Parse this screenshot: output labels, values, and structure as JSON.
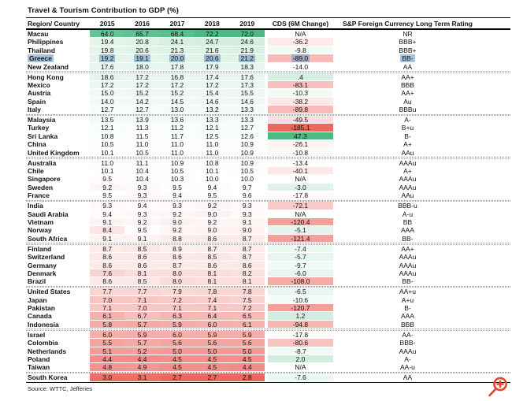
{
  "title": "Travel & Tourism Contribution to GDP (%)",
  "source": "Source: WTTC, Jefferies",
  "colors": {
    "heat_green": "#4dba82",
    "heat_red": "#ec675e",
    "highlight_blue": "#6e9bc4",
    "zoom_icon_orange": "#e8462a"
  },
  "heatmap": {
    "gdp": {
      "min": 2.7,
      "mid": 9.6,
      "max": 72.2
    },
    "cds": {
      "min": -185.1,
      "mid": -14.0,
      "max": 47.3
    }
  },
  "chart_data": {
    "type": "table",
    "columns": [
      "Region/ Country",
      "2015",
      "2016",
      "2017",
      "2018",
      "2019",
      "CDS (6M Change)",
      "S&P Foreign Currency Long Term Rating"
    ],
    "group_breaks": [
      4,
      9,
      14,
      19,
      24,
      29,
      34,
      39
    ],
    "highlighted_country": "Greece",
    "rows": [
      {
        "country": "Macau",
        "values": [
          64.0,
          65.7,
          68.4,
          72.2,
          72.0
        ],
        "cds": "N/A",
        "rating": "NR"
      },
      {
        "country": "Philippines",
        "values": [
          19.4,
          20.8,
          24.1,
          24.7,
          24.6
        ],
        "cds": "-36.2",
        "rating": "BBB+"
      },
      {
        "country": "Thailand",
        "values": [
          19.8,
          20.6,
          21.3,
          21.6,
          21.9
        ],
        "cds": "-9.8",
        "rating": "BBB+"
      },
      {
        "country": "Greece",
        "values": [
          19.2,
          19.1,
          20.0,
          20.6,
          21.2
        ],
        "cds": "-89.0",
        "rating": "BB-",
        "highlight": true
      },
      {
        "country": "New Zealand",
        "values": [
          17.6,
          18.0,
          17.8,
          17.9,
          18.3
        ],
        "cds": "-14.0",
        "rating": "AA"
      },
      {
        "country": "Hong Kong",
        "values": [
          18.6,
          17.2,
          16.8,
          17.4,
          17.6
        ],
        "cds": ".4",
        "rating": "AA+"
      },
      {
        "country": "Mexico",
        "values": [
          17.2,
          17.2,
          17.2,
          17.2,
          17.3
        ],
        "cds": "-83.1",
        "rating": "BBB"
      },
      {
        "country": "Austria",
        "values": [
          15.0,
          15.2,
          15.2,
          15.4,
          15.5
        ],
        "cds": "-10.3",
        "rating": "AA+"
      },
      {
        "country": "Spain",
        "values": [
          14.0,
          14.2,
          14.5,
          14.6,
          14.6
        ],
        "cds": "-38.2",
        "rating": "Au"
      },
      {
        "country": "Italy",
        "values": [
          12.7,
          12.7,
          13.0,
          13.2,
          13.3
        ],
        "cds": "-89.8",
        "rating": "BBBu"
      },
      {
        "country": "Malaysia",
        "values": [
          13.5,
          13.9,
          13.6,
          13.3,
          13.3
        ],
        "cds": "-49.5",
        "rating": "A-"
      },
      {
        "country": "Turkey",
        "values": [
          12.1,
          11.3,
          11.2,
          12.1,
          12.7
        ],
        "cds": "-185.1",
        "rating": "B+u"
      },
      {
        "country": "Sri Lanka",
        "values": [
          10.8,
          11.5,
          11.7,
          12.5,
          12.6
        ],
        "cds": "47.3",
        "rating": "B-"
      },
      {
        "country": "China",
        "values": [
          10.5,
          11.0,
          11.0,
          11.0,
          10.9
        ],
        "cds": "-26.1",
        "rating": "A+"
      },
      {
        "country": "United Kingdom",
        "values": [
          10.1,
          10.5,
          11.0,
          11.0,
          10.9
        ],
        "cds": "-10.8",
        "rating": "AAu"
      },
      {
        "country": "Australia",
        "values": [
          11.0,
          11.1,
          10.9,
          10.8,
          10.9
        ],
        "cds": "-13.4",
        "rating": "AAAu"
      },
      {
        "country": "Chile",
        "values": [
          10.1,
          10.4,
          10.5,
          10.1,
          10.5
        ],
        "cds": "-40.1",
        "rating": "A+"
      },
      {
        "country": "Singapore",
        "values": [
          9.5,
          10.4,
          10.3,
          10.0,
          10.0
        ],
        "cds": "N/A",
        "rating": "AAAu"
      },
      {
        "country": "Sweden",
        "values": [
          9.2,
          9.3,
          9.5,
          9.4,
          9.7
        ],
        "cds": "-3.0",
        "rating": "AAAu"
      },
      {
        "country": "France",
        "values": [
          9.5,
          9.3,
          9.4,
          9.5,
          9.6
        ],
        "cds": "-17.8",
        "rating": "AAu"
      },
      {
        "country": "India",
        "values": [
          9.3,
          9.4,
          9.3,
          9.2,
          9.3
        ],
        "cds": "-72.1",
        "rating": "BBB-u"
      },
      {
        "country": "Saudi Arabia",
        "values": [
          9.4,
          9.3,
          9.2,
          9.0,
          9.3
        ],
        "cds": "N/A",
        "rating": "A-u"
      },
      {
        "country": "Vietnam",
        "values": [
          9.1,
          9.2,
          9.0,
          9.2,
          9.1
        ],
        "cds": "-120.4",
        "rating": "BB"
      },
      {
        "country": "Norway",
        "values": [
          8.4,
          9.5,
          9.2,
          9.0,
          9.0
        ],
        "cds": "-5.1",
        "rating": "AAA"
      },
      {
        "country": "South Africa",
        "values": [
          9.1,
          9.1,
          8.8,
          8.6,
          8.7
        ],
        "cds": "-121.4",
        "rating": "BB-"
      },
      {
        "country": "Finland",
        "values": [
          8.7,
          8.5,
          8.9,
          8.7,
          8.7
        ],
        "cds": "-7.4",
        "rating": "AA+"
      },
      {
        "country": "Switzerland",
        "values": [
          8.6,
          8.6,
          8.6,
          8.5,
          8.7
        ],
        "cds": "-5.7",
        "rating": "AAAu"
      },
      {
        "country": "Germany",
        "values": [
          8.6,
          8.6,
          8.7,
          8.6,
          8.6
        ],
        "cds": "-9.7",
        "rating": "AAAu"
      },
      {
        "country": "Denmark",
        "values": [
          7.6,
          8.1,
          8.0,
          8.1,
          8.2
        ],
        "cds": "-6.0",
        "rating": "AAAu"
      },
      {
        "country": "Brazil",
        "values": [
          8.6,
          8.5,
          8.0,
          8.1,
          8.1
        ],
        "cds": "-108.0",
        "rating": "BB-"
      },
      {
        "country": "United States",
        "values": [
          7.7,
          7.7,
          7.9,
          7.8,
          7.8
        ],
        "cds": "-6.5",
        "rating": "AA+u"
      },
      {
        "country": "Japan",
        "values": [
          7.0,
          7.1,
          7.2,
          7.4,
          7.5
        ],
        "cds": "-10.6",
        "rating": "A+u"
      },
      {
        "country": "Pakistan",
        "values": [
          7.1,
          7.0,
          7.1,
          7.1,
          7.2
        ],
        "cds": "-120.7",
        "rating": "B-"
      },
      {
        "country": "Canada",
        "values": [
          6.1,
          6.7,
          6.3,
          6.4,
          6.5
        ],
        "cds": "1.2",
        "rating": "AAA"
      },
      {
        "country": "Indonesia",
        "values": [
          5.8,
          5.7,
          5.9,
          6.0,
          6.1
        ],
        "cds": "-94.8",
        "rating": "BBB"
      },
      {
        "country": "Israel",
        "values": [
          6.0,
          5.9,
          6.0,
          5.9,
          5.9
        ],
        "cds": "-17.8",
        "rating": "AA-"
      },
      {
        "country": "Colombia",
        "values": [
          5.5,
          5.7,
          5.6,
          5.6,
          5.6
        ],
        "cds": "-80.6",
        "rating": "BBB-"
      },
      {
        "country": "Netherlands",
        "values": [
          5.1,
          5.2,
          5.0,
          5.0,
          5.0
        ],
        "cds": "-8.7",
        "rating": "AAAu"
      },
      {
        "country": "Poland",
        "values": [
          4.4,
          4.4,
          4.5,
          4.5,
          4.5
        ],
        "cds": "2.0",
        "rating": "A-"
      },
      {
        "country": "Taiwan",
        "values": [
          4.8,
          4.9,
          4.5,
          4.5,
          4.4
        ],
        "cds": "N/A",
        "rating": "AA-u"
      },
      {
        "country": "South Korea",
        "values": [
          3.0,
          3.1,
          2.7,
          2.7,
          2.8
        ],
        "cds": "-7.6",
        "rating": "AA"
      }
    ]
  }
}
